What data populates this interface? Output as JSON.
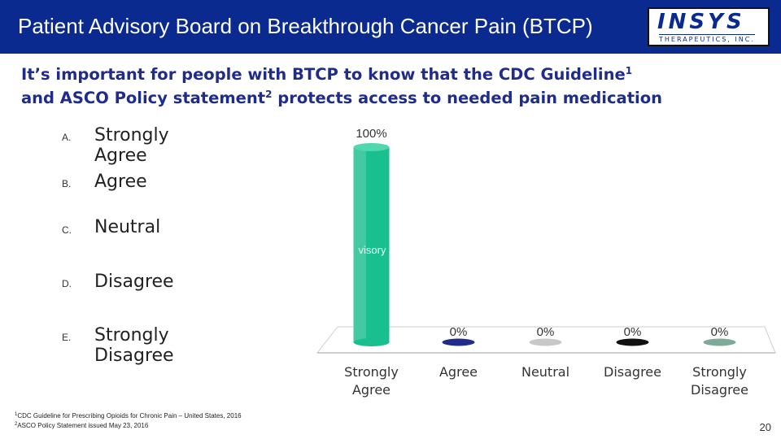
{
  "header": {
    "title": "Patient Advisory Board on Breakthrough Cancer Pain (BTCP)",
    "logo_main": "INSYS",
    "logo_sub": "THERAPEUTICS, INC."
  },
  "headline": {
    "line1": "It’s important for people with BTCP to know that the CDC Guideline",
    "sup1": "1",
    "line2": "and ASCO Policy statement",
    "sup2": "2",
    "line3": " protects access to needed pain medication"
  },
  "options": [
    {
      "letter": "A.",
      "label": "Strongly Agree"
    },
    {
      "letter": "B.",
      "label": "Agree"
    },
    {
      "letter": "C.",
      "label": "Neutral"
    },
    {
      "letter": "D.",
      "label": "Disagree"
    },
    {
      "letter": "E.",
      "label": "Strongly Disagree"
    }
  ],
  "chart_data": {
    "type": "bar",
    "categories": [
      "Strongly Agree",
      "Agree",
      "Neutral",
      "Disagree",
      "Strongly Disagree"
    ],
    "values": [
      100,
      0,
      0,
      0,
      0
    ],
    "value_labels": [
      "100%",
      "0%",
      "0%",
      "0%",
      "0%"
    ],
    "ylim": [
      0,
      100
    ],
    "colors": [
      "#1abf8f",
      "#1f2c8c",
      "#c8c8c8",
      "#111111",
      "#7faa9a"
    ],
    "bar_overlay_text": "visory"
  },
  "footnotes": [
    {
      "sup": "1",
      "text": "CDC Guideline for Prescribing Opioids for Chronic Pain – United States, 2016"
    },
    {
      "sup": "2",
      "text": "ASCO Policy Statement issued May 23, 2016"
    }
  ],
  "page_number": "20"
}
